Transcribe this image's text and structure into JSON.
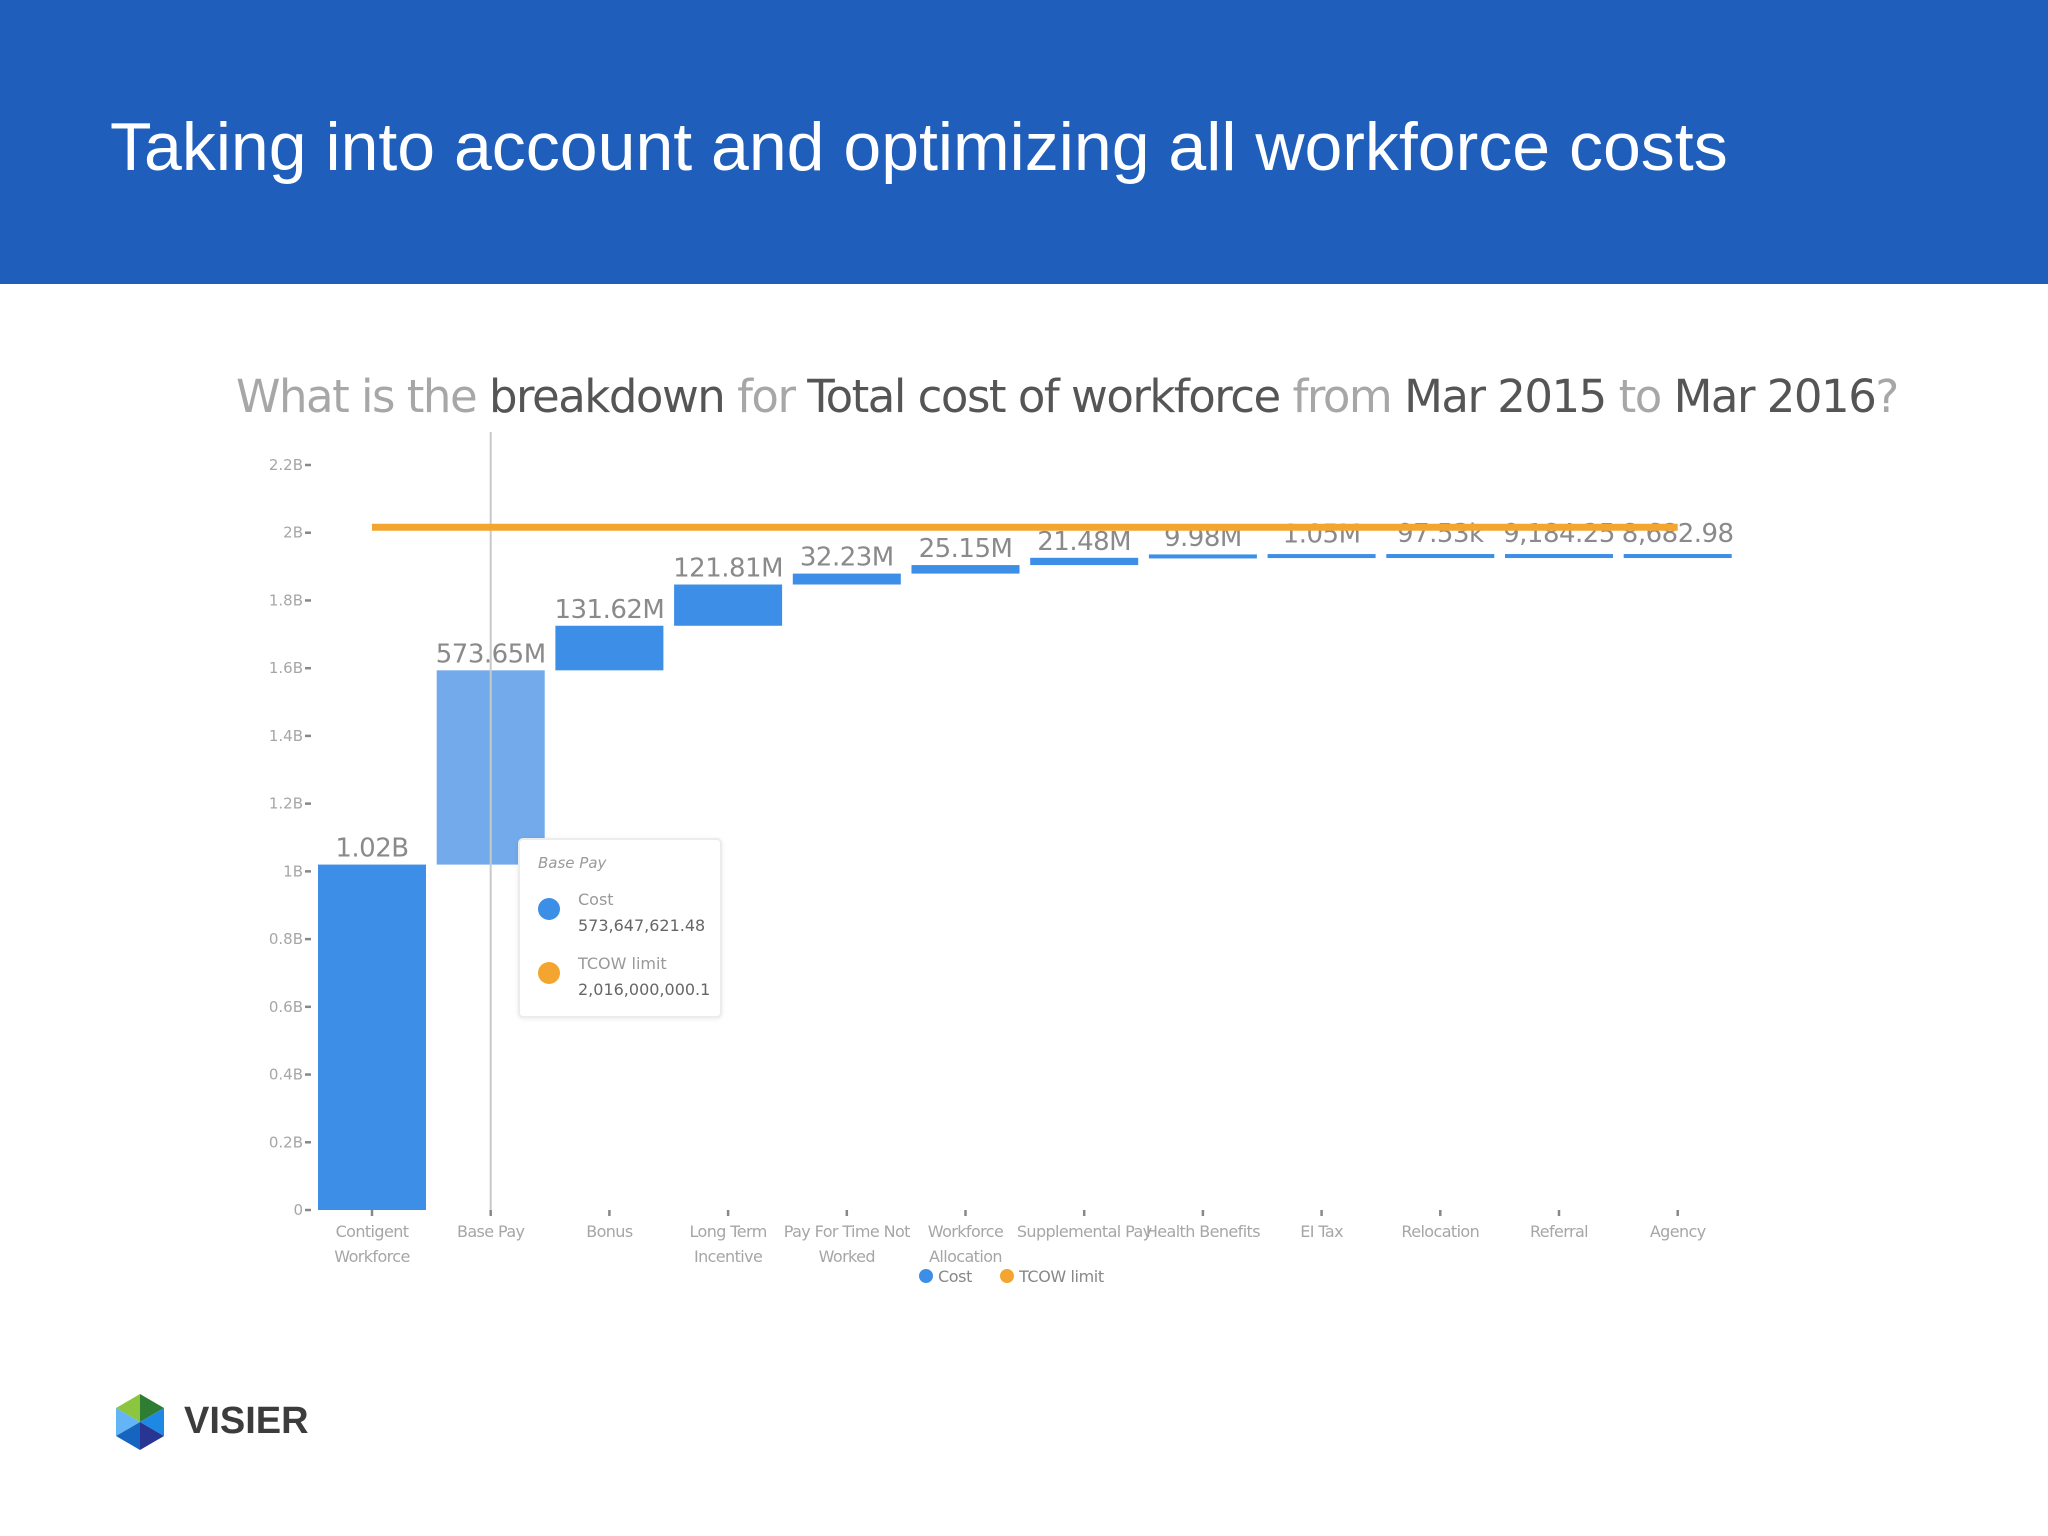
{
  "header": {
    "title": "Taking into account and optimizing all workforce costs"
  },
  "question": {
    "p1": "What is the ",
    "p2": "breakdown",
    "p3": " for ",
    "p4": "Total cost of workforce",
    "p5": " from ",
    "p6": "Mar 2015",
    "p7": " to ",
    "p8": "Mar 2016",
    "p9": "?"
  },
  "tooltip": {
    "title": "Base Pay",
    "cost_label": "Cost",
    "cost_value": "573,647,621.48",
    "limit_label": "TCOW limit",
    "limit_value": "2,016,000,000.1"
  },
  "logo": {
    "text": "VISIER"
  },
  "colors": {
    "cost": "#3c8ee6",
    "limit": "#f4a530",
    "header": "#1f5fbb"
  },
  "chart_data": {
    "type": "bar",
    "subtype": "waterfall",
    "categories": [
      [
        "Contigent",
        "Workforce"
      ],
      [
        "Base Pay"
      ],
      [
        "Bonus"
      ],
      [
        "Long Term",
        "Incentive"
      ],
      [
        "Pay For Time Not",
        "Worked"
      ],
      [
        "Workforce",
        "Allocation"
      ],
      [
        "Supplemental Pay"
      ],
      [
        "Health Benefits"
      ],
      [
        "EI Tax"
      ],
      [
        "Relocation"
      ],
      [
        "Referral"
      ],
      [
        "Agency"
      ]
    ],
    "series": [
      {
        "name": "Cost",
        "values": [
          1020000000,
          573650000,
          131620000,
          121810000,
          32230000,
          25150000,
          21480000,
          9980000,
          1050000,
          97530,
          9184.25,
          8682.98
        ],
        "labels": [
          "1.02B",
          "573.65M",
          "131.62M",
          "121.81M",
          "32.23M",
          "25.15M",
          "21.48M",
          "9.98M",
          "1.05M",
          "97.53k",
          "9,184.25",
          "8,682.98"
        ]
      },
      {
        "name": "TCOW limit",
        "value": 2016000000
      }
    ],
    "yticks": [
      {
        "v": 0,
        "label": "0"
      },
      {
        "v": 200000000,
        "label": "0.2B"
      },
      {
        "v": 400000000,
        "label": "0.4B"
      },
      {
        "v": 600000000,
        "label": "0.6B"
      },
      {
        "v": 800000000,
        "label": "0.8B"
      },
      {
        "v": 1000000000,
        "label": "1B"
      },
      {
        "v": 1200000000,
        "label": "1.2B"
      },
      {
        "v": 1400000000,
        "label": "1.4B"
      },
      {
        "v": 1600000000,
        "label": "1.6B"
      },
      {
        "v": 1800000000,
        "label": "1.8B"
      },
      {
        "v": 2000000000,
        "label": "2B"
      },
      {
        "v": 2200000000,
        "label": "2.2B"
      }
    ],
    "ylim": [
      0,
      2200000000
    ],
    "legend": {
      "position": "bottom",
      "items": [
        "Cost",
        "TCOW limit"
      ]
    },
    "hovered_category": "Base Pay"
  }
}
